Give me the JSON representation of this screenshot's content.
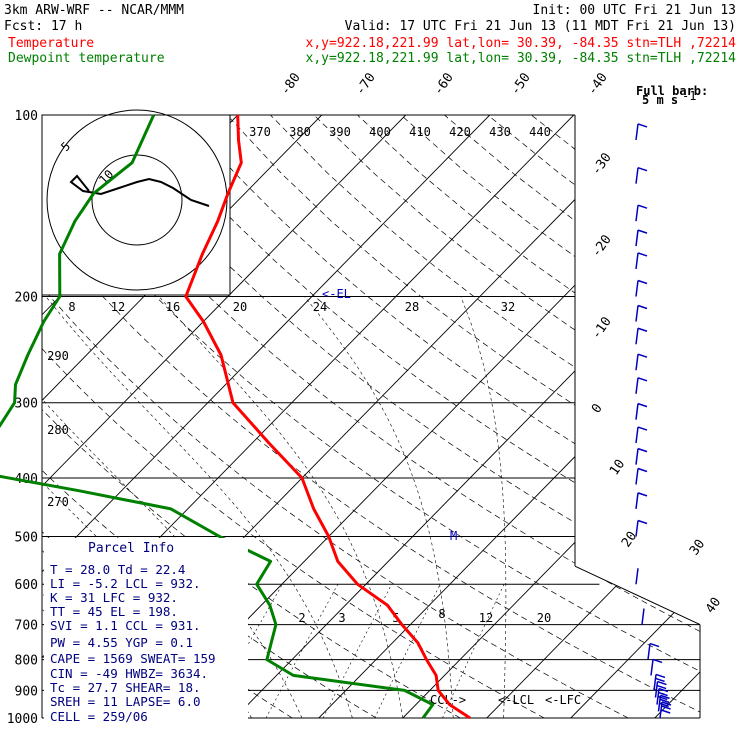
{
  "header": {
    "model": "3km ARW-WRF -- NCAR/MMM",
    "init": "Init: 00 UTC Fri 21 Jun 13",
    "fcst": "Fcst:    17 h",
    "valid": "Valid: 17 UTC Fri 21 Jun 13 (11 MDT Fri 21 Jun 13)",
    "temp_label": "Temperature",
    "dew_label": "Dewpoint temperature",
    "temp_loc": "x,y=922.18,221.99   lat,lon= 30.39, -84.35  stn=TLH ,72214",
    "dew_loc": "x,y=922.18,221.99   lat,lon= 30.39, -84.35  stn=TLH ,72214"
  },
  "colors": {
    "temperature": "#ff0000",
    "dewpoint": "#008000",
    "parcel_text": "#000080",
    "barbs": "#0000c0"
  },
  "chart_data": {
    "type": "line",
    "diagram": "skew-T log-p",
    "y_axis": {
      "ticks": [
        100,
        200,
        300,
        400,
        500,
        600,
        700,
        800,
        900,
        1000
      ],
      "scale": "log"
    },
    "isotherm_labels": [
      "-80",
      "-70",
      "-60",
      "-50",
      "-40",
      "-30",
      "-20",
      "-10",
      "0",
      "10",
      "20",
      "30",
      "40"
    ],
    "theta_e_labels": [
      "370",
      "380",
      "390",
      "400",
      "410",
      "420",
      "430",
      "440"
    ],
    "mixing_ratio_labels": [
      "8",
      "12",
      "16",
      "20",
      "24",
      "28",
      "32"
    ],
    "mixing_ratio_low_labels": [
      "2",
      "3",
      "5",
      "8",
      "12",
      "20"
    ],
    "dry_adiabat_labels": [
      "290",
      "280",
      "270"
    ],
    "temp_ticks": [
      0,
      10,
      20,
      30,
      40
    ],
    "annotations": {
      "el": "<-EL",
      "ccl": "CCL->",
      "lcl": "<-LCL",
      "lfc": "<-LFC",
      "m": "M",
      "kts": "kts",
      "hodo_ring": "5",
      "hodo_ring_inner": "10",
      "full_barb_1": "Full barb:",
      "full_barb_2": "5 m s",
      "full_barb_sup": "-1"
    },
    "series": [
      {
        "name": "Temperature",
        "pressure": [
          100,
          110,
          120,
          135,
          150,
          170,
          200,
          220,
          250,
          300,
          350,
          400,
          450,
          500,
          550,
          600,
          650,
          700,
          750,
          800,
          850,
          900,
          950,
          1000
        ],
        "temperature": [
          -70,
          -67,
          -64,
          -62,
          -60,
          -58,
          -55,
          -50,
          -44,
          -37,
          -28,
          -20,
          -15,
          -10,
          -6,
          -1,
          5,
          9,
          13,
          16,
          19,
          21,
          24,
          28
        ]
      },
      {
        "name": "Dewpoint temperature",
        "pressure": [
          100,
          120,
          135,
          150,
          170,
          200,
          220,
          250,
          280,
          300,
          330,
          370,
          390,
          420,
          450,
          500,
          550,
          600,
          650,
          700,
          800,
          850,
          900,
          950,
          1000
        ],
        "temperature": [
          -80,
          -77,
          -78,
          -77,
          -75,
          -70,
          -69,
          -67,
          -65,
          -63,
          -62,
          -60,
          -60,
          -45,
          -32,
          -23,
          -14,
          -13,
          -9,
          -6,
          -3,
          2,
          17,
          22,
          22.4
        ]
      }
    ],
    "wind_barbs": {
      "pressures": [
        110,
        130,
        150,
        165,
        180,
        200,
        220,
        240,
        265,
        290,
        320,
        350,
        380,
        410,
        450,
        500,
        600,
        700,
        800,
        850,
        900,
        925,
        950,
        975,
        1000
      ],
      "flags_count": [
        1,
        1,
        1,
        1,
        1,
        1,
        1,
        1,
        1,
        1,
        1,
        1,
        1,
        1,
        1,
        1,
        0,
        0,
        1,
        1,
        2,
        2,
        3,
        3,
        3
      ]
    },
    "hodograph": {
      "u": [
        12,
        9,
        6,
        4,
        2,
        0,
        -3,
        -6,
        -9,
        -11,
        -10,
        -8
      ],
      "v": [
        -2,
        0,
        4,
        6,
        7,
        6,
        4,
        2,
        3,
        6,
        8,
        3
      ]
    }
  },
  "parcel": {
    "title": "Parcel Info",
    "rows": [
      "T  =   28.0  Td =  22.4",
      "LI =   -5.2  LCL =  932.",
      "K  =     31  LFC =  932.",
      "TT =     45  EL  =  198.",
      "SVI =   1.1  CCL =  931.",
      "PW =   4.55  YGP =   0.1",
      "CAPE =  1569  SWEAT=  159",
      "CIN =    -49  HWBZ= 3634.",
      "Tc =   27.7  SHEAR=  18.",
      "SREH =    11  LAPSE=  6.0",
      "CELL = 259/06"
    ]
  }
}
